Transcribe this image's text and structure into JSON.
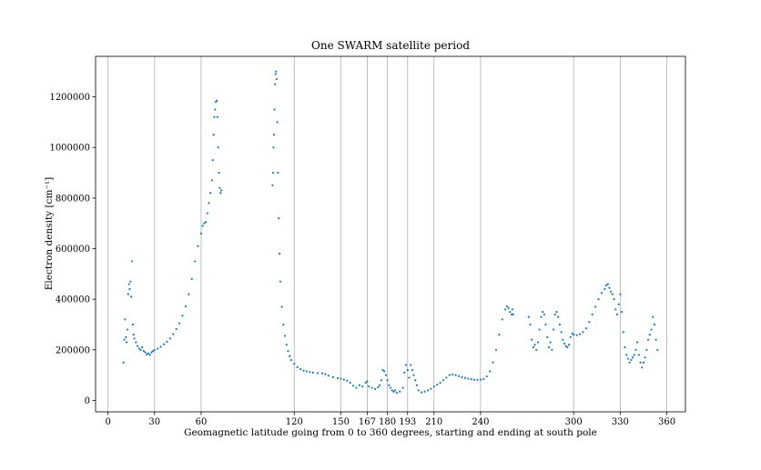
{
  "chart_data": {
    "type": "scatter",
    "title": "One SWARM satellite period",
    "xlabel": "Geomagnetic latitude going from 0 to 360 degrees, starting and ending at south pole",
    "ylabel": "Electron density [cm⁻¹]",
    "xlim": [
      -8,
      372
    ],
    "ylim": [
      -45000,
      1360000
    ],
    "xticks": [
      0,
      30,
      60,
      120,
      150,
      167,
      180,
      193,
      210,
      240,
      300,
      330,
      360
    ],
    "yticks": [
      0,
      200000,
      400000,
      600000,
      800000,
      1000000,
      1200000
    ],
    "grid": "x-only",
    "marker_color": "#1f77b4",
    "series": [
      {
        "values": [
          [
            10,
            150000
          ],
          [
            10.5,
            240000
          ],
          [
            11,
            320000
          ],
          [
            11.5,
            250000
          ],
          [
            12,
            230000
          ],
          [
            12.5,
            280000
          ],
          [
            13,
            420000
          ],
          [
            13.5,
            460000
          ],
          [
            14,
            440000
          ],
          [
            14.5,
            470000
          ],
          [
            15,
            410000
          ],
          [
            15.5,
            550000
          ],
          [
            16,
            300000
          ],
          [
            16.5,
            260000
          ],
          [
            17,
            245000
          ],
          [
            18,
            230000
          ],
          [
            19,
            215000
          ],
          [
            20,
            205000
          ],
          [
            21,
            200000
          ],
          [
            22,
            210000
          ],
          [
            23,
            195000
          ],
          [
            24,
            190000
          ],
          [
            25,
            182000
          ],
          [
            26,
            186000
          ],
          [
            27,
            180000
          ],
          [
            28,
            190000
          ],
          [
            29,
            195000
          ],
          [
            30,
            200000
          ],
          [
            32,
            205000
          ],
          [
            34,
            212000
          ],
          [
            36,
            222000
          ],
          [
            38,
            232000
          ],
          [
            40,
            245000
          ],
          [
            42,
            262000
          ],
          [
            44,
            282000
          ],
          [
            46,
            305000
          ],
          [
            48,
            335000
          ],
          [
            50,
            372000
          ],
          [
            52,
            420000
          ],
          [
            54,
            480000
          ],
          [
            56,
            550000
          ],
          [
            58,
            610000
          ],
          [
            60,
            660000
          ],
          [
            61,
            690000
          ],
          [
            62,
            700000
          ],
          [
            63,
            705000
          ],
          [
            64,
            740000
          ],
          [
            65,
            780000
          ],
          [
            66,
            820000
          ],
          [
            67,
            870000
          ],
          [
            67.5,
            950000
          ],
          [
            68,
            1050000
          ],
          [
            68.5,
            1120000
          ],
          [
            69,
            1150000
          ],
          [
            69.5,
            1180000
          ],
          [
            70,
            1185000
          ],
          [
            70.5,
            1120000
          ],
          [
            71,
            1000000
          ],
          [
            71.5,
            900000
          ],
          [
            72,
            840000
          ],
          [
            72.5,
            820000
          ],
          [
            73,
            830000
          ],
          [
            106,
            850000
          ],
          [
            106.3,
            900000
          ],
          [
            106.6,
            1000000
          ],
          [
            107,
            1050000
          ],
          [
            107.3,
            1150000
          ],
          [
            107.6,
            1250000
          ],
          [
            108,
            1290000
          ],
          [
            108.3,
            1300000
          ],
          [
            108.6,
            1270000
          ],
          [
            109,
            1100000
          ],
          [
            109.5,
            900000
          ],
          [
            110,
            720000
          ],
          [
            110.5,
            580000
          ],
          [
            111,
            470000
          ],
          [
            112,
            370000
          ],
          [
            113,
            300000
          ],
          [
            114,
            255000
          ],
          [
            115,
            220000
          ],
          [
            116,
            195000
          ],
          [
            117,
            175000
          ],
          [
            118,
            160000
          ],
          [
            120,
            145000
          ],
          [
            122,
            132000
          ],
          [
            124,
            124000
          ],
          [
            126,
            118000
          ],
          [
            128,
            115000
          ],
          [
            130,
            112000
          ],
          [
            132,
            110000
          ],
          [
            135,
            108000
          ],
          [
            138,
            107000
          ],
          [
            140,
            104000
          ],
          [
            142,
            98000
          ],
          [
            145,
            92000
          ],
          [
            148,
            88000
          ],
          [
            150,
            86000
          ],
          [
            152,
            82000
          ],
          [
            154,
            78000
          ],
          [
            156,
            70000
          ],
          [
            158,
            58000
          ],
          [
            160,
            50000
          ],
          [
            162,
            60000
          ],
          [
            164,
            55000
          ],
          [
            166,
            70000
          ],
          [
            167,
            75000
          ],
          [
            168,
            55000
          ],
          [
            170,
            50000
          ],
          [
            172,
            45000
          ],
          [
            174,
            52000
          ],
          [
            175,
            60000
          ],
          [
            176,
            80000
          ],
          [
            177,
            120000
          ],
          [
            178,
            115000
          ],
          [
            179,
            100000
          ],
          [
            180,
            80000
          ],
          [
            181,
            60000
          ],
          [
            182,
            50000
          ],
          [
            183,
            40000
          ],
          [
            184,
            35000
          ],
          [
            185,
            40000
          ],
          [
            186,
            30000
          ],
          [
            188,
            35000
          ],
          [
            190,
            50000
          ],
          [
            191,
            110000
          ],
          [
            192,
            140000
          ],
          [
            193,
            120000
          ],
          [
            194,
            90000
          ],
          [
            195,
            140000
          ],
          [
            196,
            120000
          ],
          [
            197,
            100000
          ],
          [
            198,
            80000
          ],
          [
            199,
            60000
          ],
          [
            200,
            40000
          ],
          [
            202,
            32000
          ],
          [
            204,
            35000
          ],
          [
            206,
            40000
          ],
          [
            208,
            46000
          ],
          [
            210,
            55000
          ],
          [
            212,
            62000
          ],
          [
            214,
            70000
          ],
          [
            216,
            80000
          ],
          [
            218,
            90000
          ],
          [
            220,
            100000
          ],
          [
            222,
            103000
          ],
          [
            224,
            100000
          ],
          [
            226,
            96000
          ],
          [
            228,
            92000
          ],
          [
            230,
            89000
          ],
          [
            232,
            86000
          ],
          [
            234,
            84000
          ],
          [
            236,
            82000
          ],
          [
            238,
            81000
          ],
          [
            240,
            82000
          ],
          [
            242,
            85000
          ],
          [
            244,
            95000
          ],
          [
            246,
            115000
          ],
          [
            248,
            150000
          ],
          [
            250,
            200000
          ],
          [
            252,
            260000
          ],
          [
            254,
            320000
          ],
          [
            256,
            360000
          ],
          [
            257,
            372000
          ],
          [
            258,
            365000
          ],
          [
            259,
            350000
          ],
          [
            260,
            340000
          ],
          [
            260.5,
            360000
          ],
          [
            261,
            340000
          ],
          [
            271,
            330000
          ],
          [
            272,
            300000
          ],
          [
            273,
            240000
          ],
          [
            274,
            210000
          ],
          [
            275,
            220000
          ],
          [
            276,
            200000
          ],
          [
            277,
            230000
          ],
          [
            278,
            280000
          ],
          [
            279,
            330000
          ],
          [
            280,
            350000
          ],
          [
            281,
            340000
          ],
          [
            282,
            300000
          ],
          [
            283,
            250000
          ],
          [
            284,
            210000
          ],
          [
            285,
            230000
          ],
          [
            286,
            200000
          ],
          [
            287,
            280000
          ],
          [
            288,
            340000
          ],
          [
            289,
            350000
          ],
          [
            290,
            330000
          ],
          [
            291,
            300000
          ],
          [
            292,
            270000
          ],
          [
            293,
            240000
          ],
          [
            294,
            225000
          ],
          [
            295,
            215000
          ],
          [
            296,
            210000
          ],
          [
            297,
            220000
          ],
          [
            298,
            250000
          ],
          [
            299,
            265000
          ],
          [
            300,
            260000
          ],
          [
            302,
            258000
          ],
          [
            304,
            262000
          ],
          [
            306,
            270000
          ],
          [
            308,
            285000
          ],
          [
            310,
            310000
          ],
          [
            312,
            340000
          ],
          [
            314,
            370000
          ],
          [
            316,
            400000
          ],
          [
            318,
            425000
          ],
          [
            320,
            440000
          ],
          [
            321,
            455000
          ],
          [
            322,
            460000
          ],
          [
            323,
            445000
          ],
          [
            324,
            430000
          ],
          [
            325,
            420000
          ],
          [
            326,
            400000
          ],
          [
            327,
            360000
          ],
          [
            328,
            340000
          ],
          [
            329,
            380000
          ],
          [
            330,
            420000
          ],
          [
            331,
            350000
          ],
          [
            332,
            270000
          ],
          [
            333,
            210000
          ],
          [
            334,
            180000
          ],
          [
            335,
            165000
          ],
          [
            336,
            150000
          ],
          [
            337,
            160000
          ],
          [
            338,
            170000
          ],
          [
            339,
            180000
          ],
          [
            340,
            200000
          ],
          [
            341,
            230000
          ],
          [
            342,
            180000
          ],
          [
            343,
            150000
          ],
          [
            344,
            130000
          ],
          [
            345,
            150000
          ],
          [
            346,
            170000
          ],
          [
            347,
            200000
          ],
          [
            348,
            240000
          ],
          [
            349,
            260000
          ],
          [
            350,
            280000
          ],
          [
            351,
            330000
          ],
          [
            352,
            300000
          ],
          [
            353,
            240000
          ],
          [
            354,
            200000
          ]
        ]
      }
    ]
  }
}
